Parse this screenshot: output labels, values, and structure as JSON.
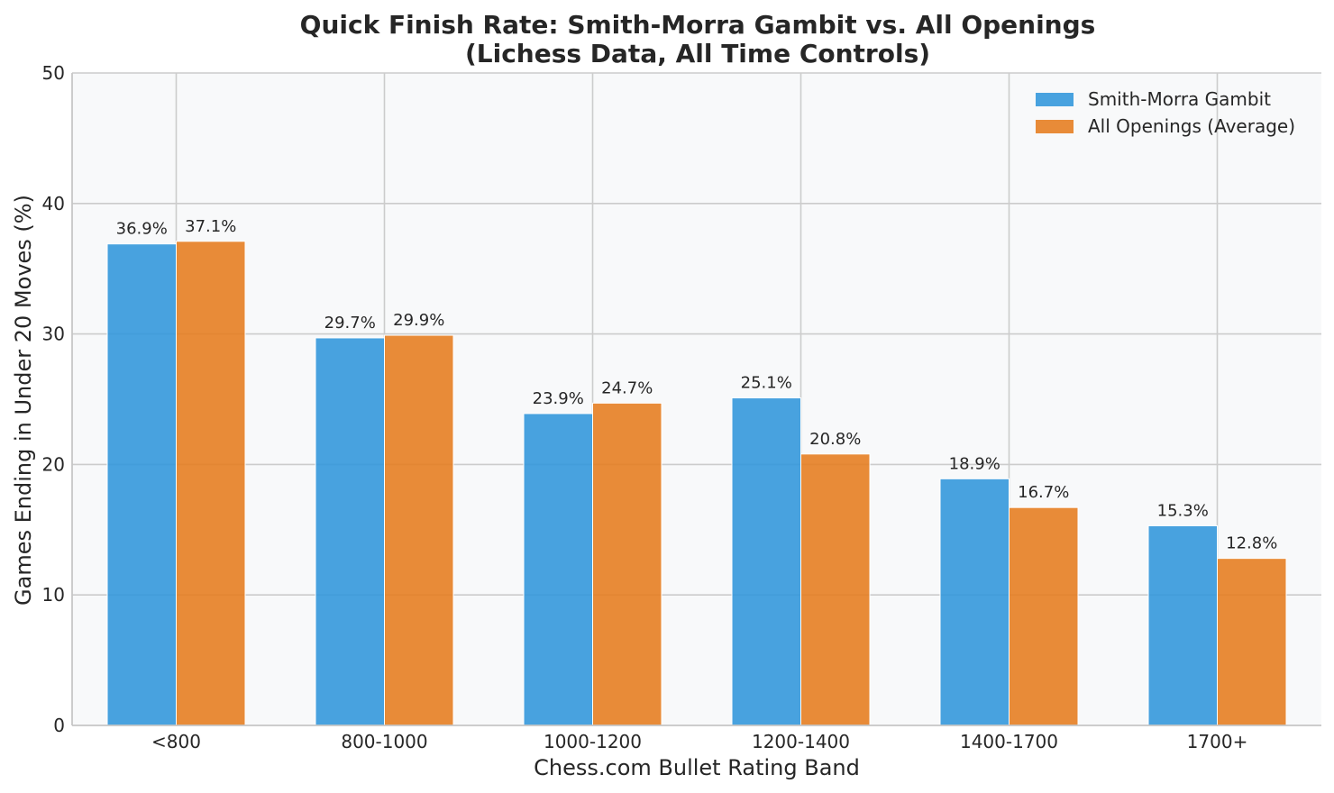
{
  "chart_data": {
    "type": "bar",
    "title": "Quick Finish Rate: Smith-Morra Gambit vs. All Openings",
    "subtitle": "(Lichess Data, All Time Controls)",
    "xlabel": "Chess.com Bullet Rating Band",
    "ylabel": "Games Ending in Under 20 Moves (%)",
    "ylim": [
      0,
      50
    ],
    "yticks": [
      0,
      10,
      20,
      30,
      40,
      50
    ],
    "categories": [
      "<800",
      "800-1000",
      "1000-1200",
      "1200-1400",
      "1400-1700",
      "1700+"
    ],
    "series": [
      {
        "name": "Smith-Morra Gambit",
        "color": "#3498db",
        "values": [
          36.9,
          29.7,
          23.9,
          25.1,
          18.9,
          15.3
        ],
        "labels": [
          "36.9%",
          "29.7%",
          "23.9%",
          "25.1%",
          "18.9%",
          "15.3%"
        ]
      },
      {
        "name": "All Openings (Average)",
        "color": "#e67e22",
        "values": [
          37.1,
          29.9,
          24.7,
          20.8,
          16.7,
          12.8
        ],
        "labels": [
          "37.1%",
          "29.9%",
          "24.7%",
          "20.8%",
          "16.7%",
          "12.8%"
        ]
      }
    ],
    "grid": true,
    "legend_position": "top-right"
  }
}
